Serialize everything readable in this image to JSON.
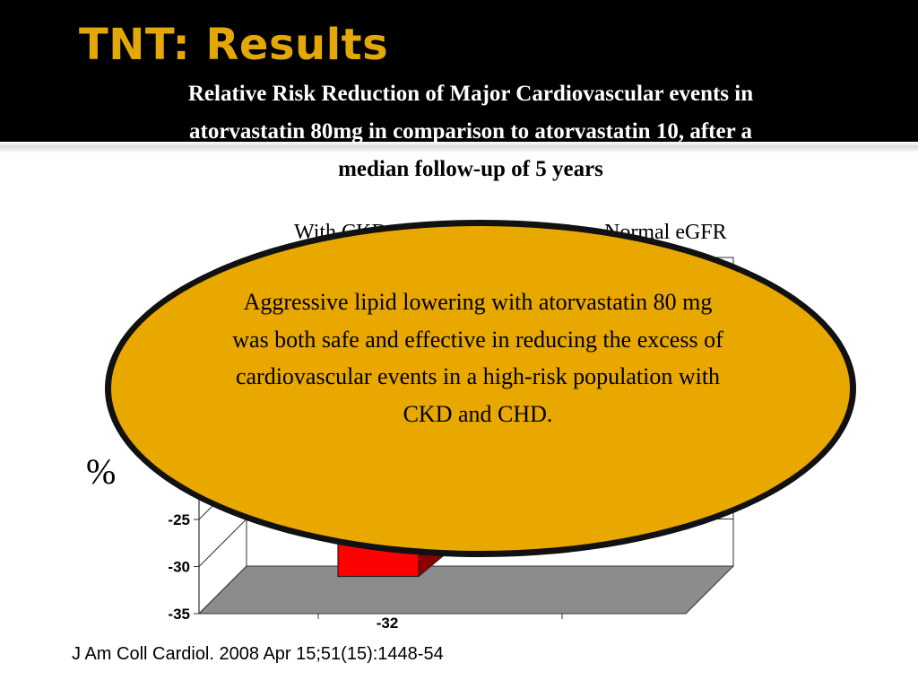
{
  "slide": {
    "title": "TNT: Results",
    "subtitle_lines": [
      "Relative Risk Reduction of Major Cardiovascular events in",
      "atorvastatin 80mg in comparison to atorvastatin 10, after a",
      "median follow-up of 5 years"
    ],
    "y_unit": "%",
    "callout": "Aggressive lipid lowering with atorvastatin 80 mg was both safe and effective in reducing the excess of cardiovascular events in a high-risk population with CKD and CHD.",
    "citation": "J Am Coll Cardiol. 2008 Apr 15;51(15):1448-54",
    "legend_visible": [
      "With CKD",
      "Normal eGFR"
    ]
  },
  "colors": {
    "header_bg": "#000000",
    "title": "#e3a808",
    "callout_fill": "#e8a800",
    "bar": "#ff0000",
    "floor": "#8c8c8c"
  },
  "chart_data": {
    "type": "bar",
    "style": "3d",
    "categories": [
      "With CKD",
      "Normal eGFR"
    ],
    "values": [
      -32,
      null
    ],
    "data_labels": [
      "-32",
      ""
    ],
    "ylabel": "%",
    "ylim": [
      -35,
      0
    ],
    "yticks": [
      -25,
      -30,
      -35
    ],
    "grid": true
  }
}
